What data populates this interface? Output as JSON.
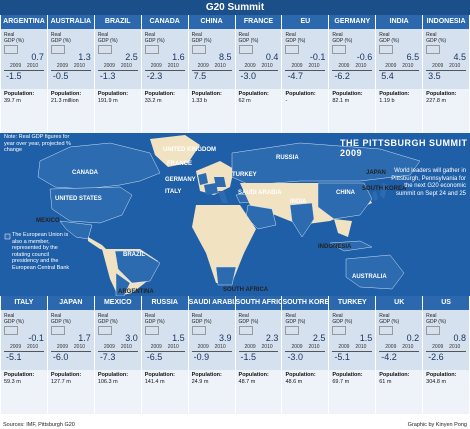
{
  "title": "G20 Summit",
  "real_gdp_label": "Real GDP (%)",
  "year_2009": "2009",
  "year_2010": "2010",
  "population_label": "Population:",
  "top_row": [
    {
      "name": "ARGENTINA",
      "gdp_2009": "-1.5",
      "gdp_2010": "0.7",
      "population": "39.7 m"
    },
    {
      "name": "AUSTRALIA",
      "gdp_2009": "-0.5",
      "gdp_2010": "1.3",
      "population": "21.3 million"
    },
    {
      "name": "BRAZIL",
      "gdp_2009": "-1.3",
      "gdp_2010": "2.5",
      "population": "191.9 m"
    },
    {
      "name": "CANADA",
      "gdp_2009": "-2.3",
      "gdp_2010": "1.6",
      "population": "33.2 m"
    },
    {
      "name": "CHINA",
      "gdp_2009": "7.5",
      "gdp_2010": "8.5",
      "population": "1.33 b"
    },
    {
      "name": "FRANCE",
      "gdp_2009": "-3.0",
      "gdp_2010": "0.4",
      "population": "62 m"
    },
    {
      "name": "EU",
      "gdp_2009": "-4.7",
      "gdp_2010": "-0.1",
      "population": "-"
    },
    {
      "name": "GERMANY",
      "gdp_2009": "-6.2",
      "gdp_2010": "-0.6",
      "population": "82.1 m"
    },
    {
      "name": "INDIA",
      "gdp_2009": "5.4",
      "gdp_2010": "6.5",
      "population": "1.19 b"
    },
    {
      "name": "INDONESIA",
      "gdp_2009": "3.5",
      "gdp_2010": "4.5",
      "population": "227.8 m"
    }
  ],
  "bottom_row": [
    {
      "name": "ITALY",
      "gdp_2009": "-5.1",
      "gdp_2010": "-0.1",
      "population": "59.3 m"
    },
    {
      "name": "JAPAN",
      "gdp_2009": "-6.0",
      "gdp_2010": "1.7",
      "population": "127.7 m"
    },
    {
      "name": "MEXICO",
      "gdp_2009": "-7.3",
      "gdp_2010": "3.0",
      "population": "106.3 m"
    },
    {
      "name": "RUSSIA",
      "gdp_2009": "-6.5",
      "gdp_2010": "1.5",
      "population": "141.4 m"
    },
    {
      "name": "SAUDI ARABIA",
      "gdp_2009": "-0.9",
      "gdp_2010": "3.9",
      "population": "24.9 m"
    },
    {
      "name": "SOUTH AFRICA",
      "gdp_2009": "-1.5",
      "gdp_2010": "2.3",
      "population": "48.7 m"
    },
    {
      "name": "SOUTH KOREA",
      "gdp_2009": "-3.0",
      "gdp_2010": "2.5",
      "population": "48.6 m"
    },
    {
      "name": "TURKEY",
      "gdp_2009": "-5.1",
      "gdp_2010": "1.5",
      "population": "69.7 m"
    },
    {
      "name": "UK",
      "gdp_2009": "-4.2",
      "gdp_2010": "0.2",
      "population": "61 m"
    },
    {
      "name": "US",
      "gdp_2009": "-2.6",
      "gdp_2010": "0.8",
      "population": "304.8 m"
    }
  ],
  "note": "Note: Real GDP figures for year over year, projected % change",
  "eu_note": "The European Union is also a member, represented by the rotating council presidency and the European Central Bank",
  "pittsburgh_logo": "THE PITTSBURGH SUMMIT 2009",
  "pittsburgh_text": "World leaders will gather in Pittsburgh, Pennsylvania for the next G20 economic summit on Sept 24 and 25",
  "map_labels": {
    "canada": "CANADA",
    "united_states": "UNITED STATES",
    "mexico": "MEXICO",
    "brazil": "BRAZIL",
    "argentina": "ARGENTINA",
    "uk": "UNITED KINGDOM",
    "france": "FRANCE",
    "germany": "GERMANY",
    "italy": "ITALY",
    "turkey": "TURKEY",
    "russia": "RUSSIA",
    "saudi_arabia": "SAUDI ARABIA",
    "india": "INDIA",
    "china": "CHINA",
    "japan": "JAPAN",
    "south_korea": "SOUTH KOREA",
    "indonesia": "INDONESIA",
    "australia": "AUSTRALIA",
    "south_africa": "SOUTH AFRICA"
  },
  "sources": "Sources: IMF, Pittsburgh G20",
  "credit": "Graphic by Kinyen Pong",
  "colors": {
    "header": "#1b4f8a",
    "card": "#d5e1ef",
    "ocean": "#1f5fa8",
    "land": "#f1e2c2",
    "g20": "#2c6bb0"
  }
}
